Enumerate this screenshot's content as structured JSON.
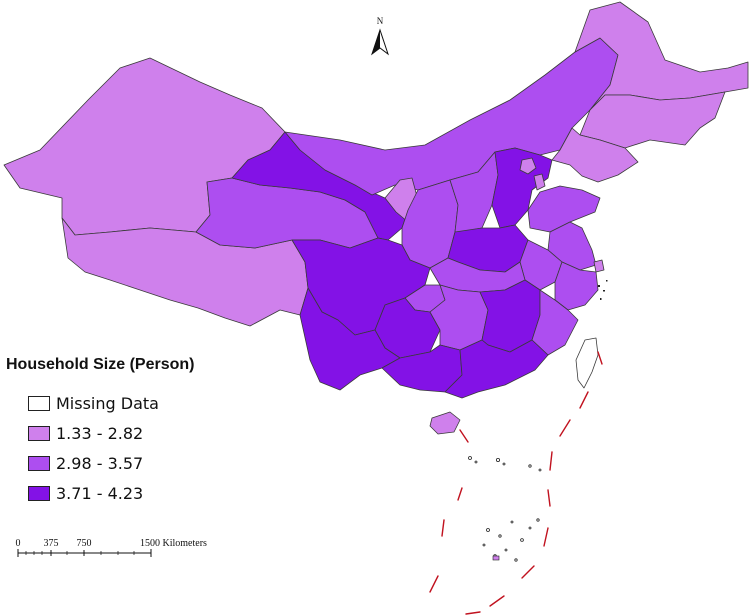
{
  "legend": {
    "title": "Household Size (Person)",
    "items": [
      {
        "label": "Missing Data",
        "color": "#ffffff"
      },
      {
        "label": "1.33 - 2.82",
        "color": "#cf80ec"
      },
      {
        "label": "2.98 - 3.57",
        "color": "#ad4ef0"
      },
      {
        "label": "3.71 - 4.23",
        "color": "#8312e6"
      }
    ]
  },
  "north_arrow": {
    "label": "N",
    "icon": "north-arrow-icon"
  },
  "scale_bar": {
    "ticks": [
      "0",
      "375",
      "750",
      "1500 Kilometers"
    ]
  },
  "colors": {
    "low": "#cf80ec",
    "mid": "#ad4ef0",
    "high": "#8312e6",
    "boundary_dash": "#c1121f"
  }
}
